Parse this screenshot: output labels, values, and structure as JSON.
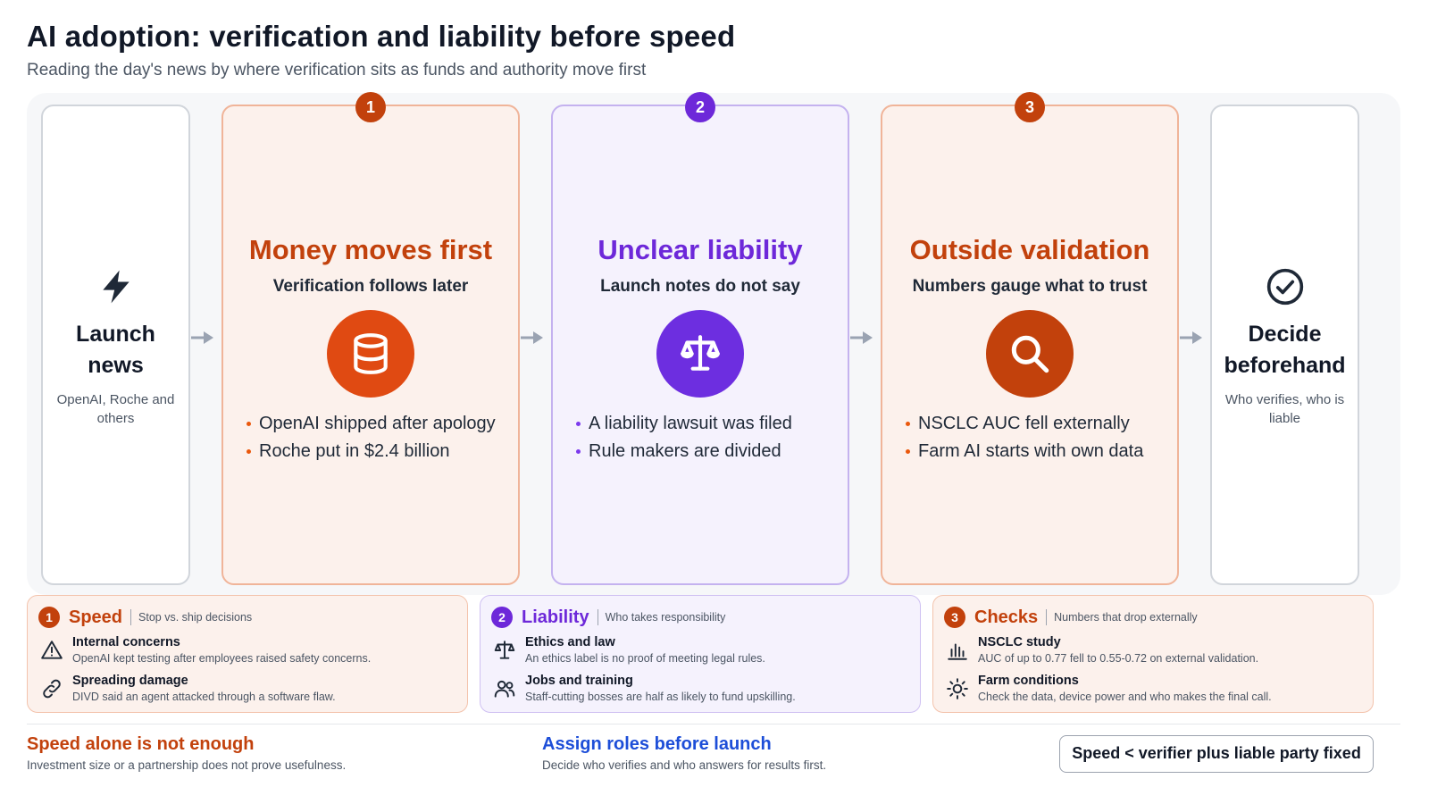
{
  "header": {
    "title": "AI adoption: verification and liability before speed",
    "subtitle": "Reading the day's news by where verification sits as funds and authority move first"
  },
  "flow": {
    "start": {
      "icon": "lightning-icon",
      "title": "Launch news",
      "subtitle": "OpenAI, Roche and others"
    },
    "stages": [
      {
        "number": "1",
        "title": "Money moves first",
        "subtitle": "Verification follows later",
        "icon": "database-icon",
        "color": "#c2410c",
        "icon_color": "#e04a12",
        "bullets": [
          "OpenAI shipped after apology",
          "Roche put in $2.4 billion"
        ]
      },
      {
        "number": "2",
        "title": "Unclear liability",
        "subtitle": "Launch notes do not say",
        "icon": "scales-icon",
        "color": "#6d28d9",
        "icon_color": "#6d2ee0",
        "bullets": [
          "A liability lawsuit was filed",
          "Rule makers are divided"
        ]
      },
      {
        "number": "3",
        "title": "Outside validation",
        "subtitle": "Numbers gauge what to trust",
        "icon": "search-icon",
        "color": "#c2410c",
        "icon_color": "#c2410c",
        "bullets": [
          "NSCLC AUC fell externally",
          "Farm AI starts with own data"
        ]
      }
    ],
    "end": {
      "icon": "check-circle-icon",
      "title": "Decide beforehand",
      "subtitle": "Who verifies, who is liable"
    }
  },
  "legend": [
    {
      "number": "1",
      "title": "Speed",
      "tag": "Stop vs. ship decisions",
      "color": "#c2410c",
      "items": [
        {
          "icon": "warning-icon",
          "title": "Internal concerns",
          "text": "OpenAI kept testing after employees raised safety concerns."
        },
        {
          "icon": "link-icon",
          "title": "Spreading damage",
          "text": "DIVD said an agent attacked through a software flaw."
        }
      ]
    },
    {
      "number": "2",
      "title": "Liability",
      "tag": "Who takes responsibility",
      "color": "#6d28d9",
      "items": [
        {
          "icon": "scales-icon",
          "title": "Ethics and law",
          "text": "An ethics label is no proof of meeting legal rules."
        },
        {
          "icon": "people-icon",
          "title": "Jobs and training",
          "text": "Staff-cutting bosses are half as likely to fund upskilling."
        }
      ]
    },
    {
      "number": "3",
      "title": "Checks",
      "tag": "Numbers that drop externally",
      "color": "#c2410c",
      "items": [
        {
          "icon": "bar-chart-icon",
          "title": "NSCLC study",
          "text": "AUC of up to 0.77 fell to 0.55-0.72 on external validation."
        },
        {
          "icon": "sun-icon",
          "title": "Farm conditions",
          "text": "Check the data, device power and who makes the final call."
        }
      ]
    }
  ],
  "footer": {
    "left": {
      "title": "Speed alone is not enough",
      "text": "Investment size or a partnership does not prove usefulness."
    },
    "middle": {
      "title": "Assign roles before launch",
      "text": "Decide who verifies and who answers for results first."
    },
    "summary": "Speed < verifier plus liable party fixed"
  }
}
